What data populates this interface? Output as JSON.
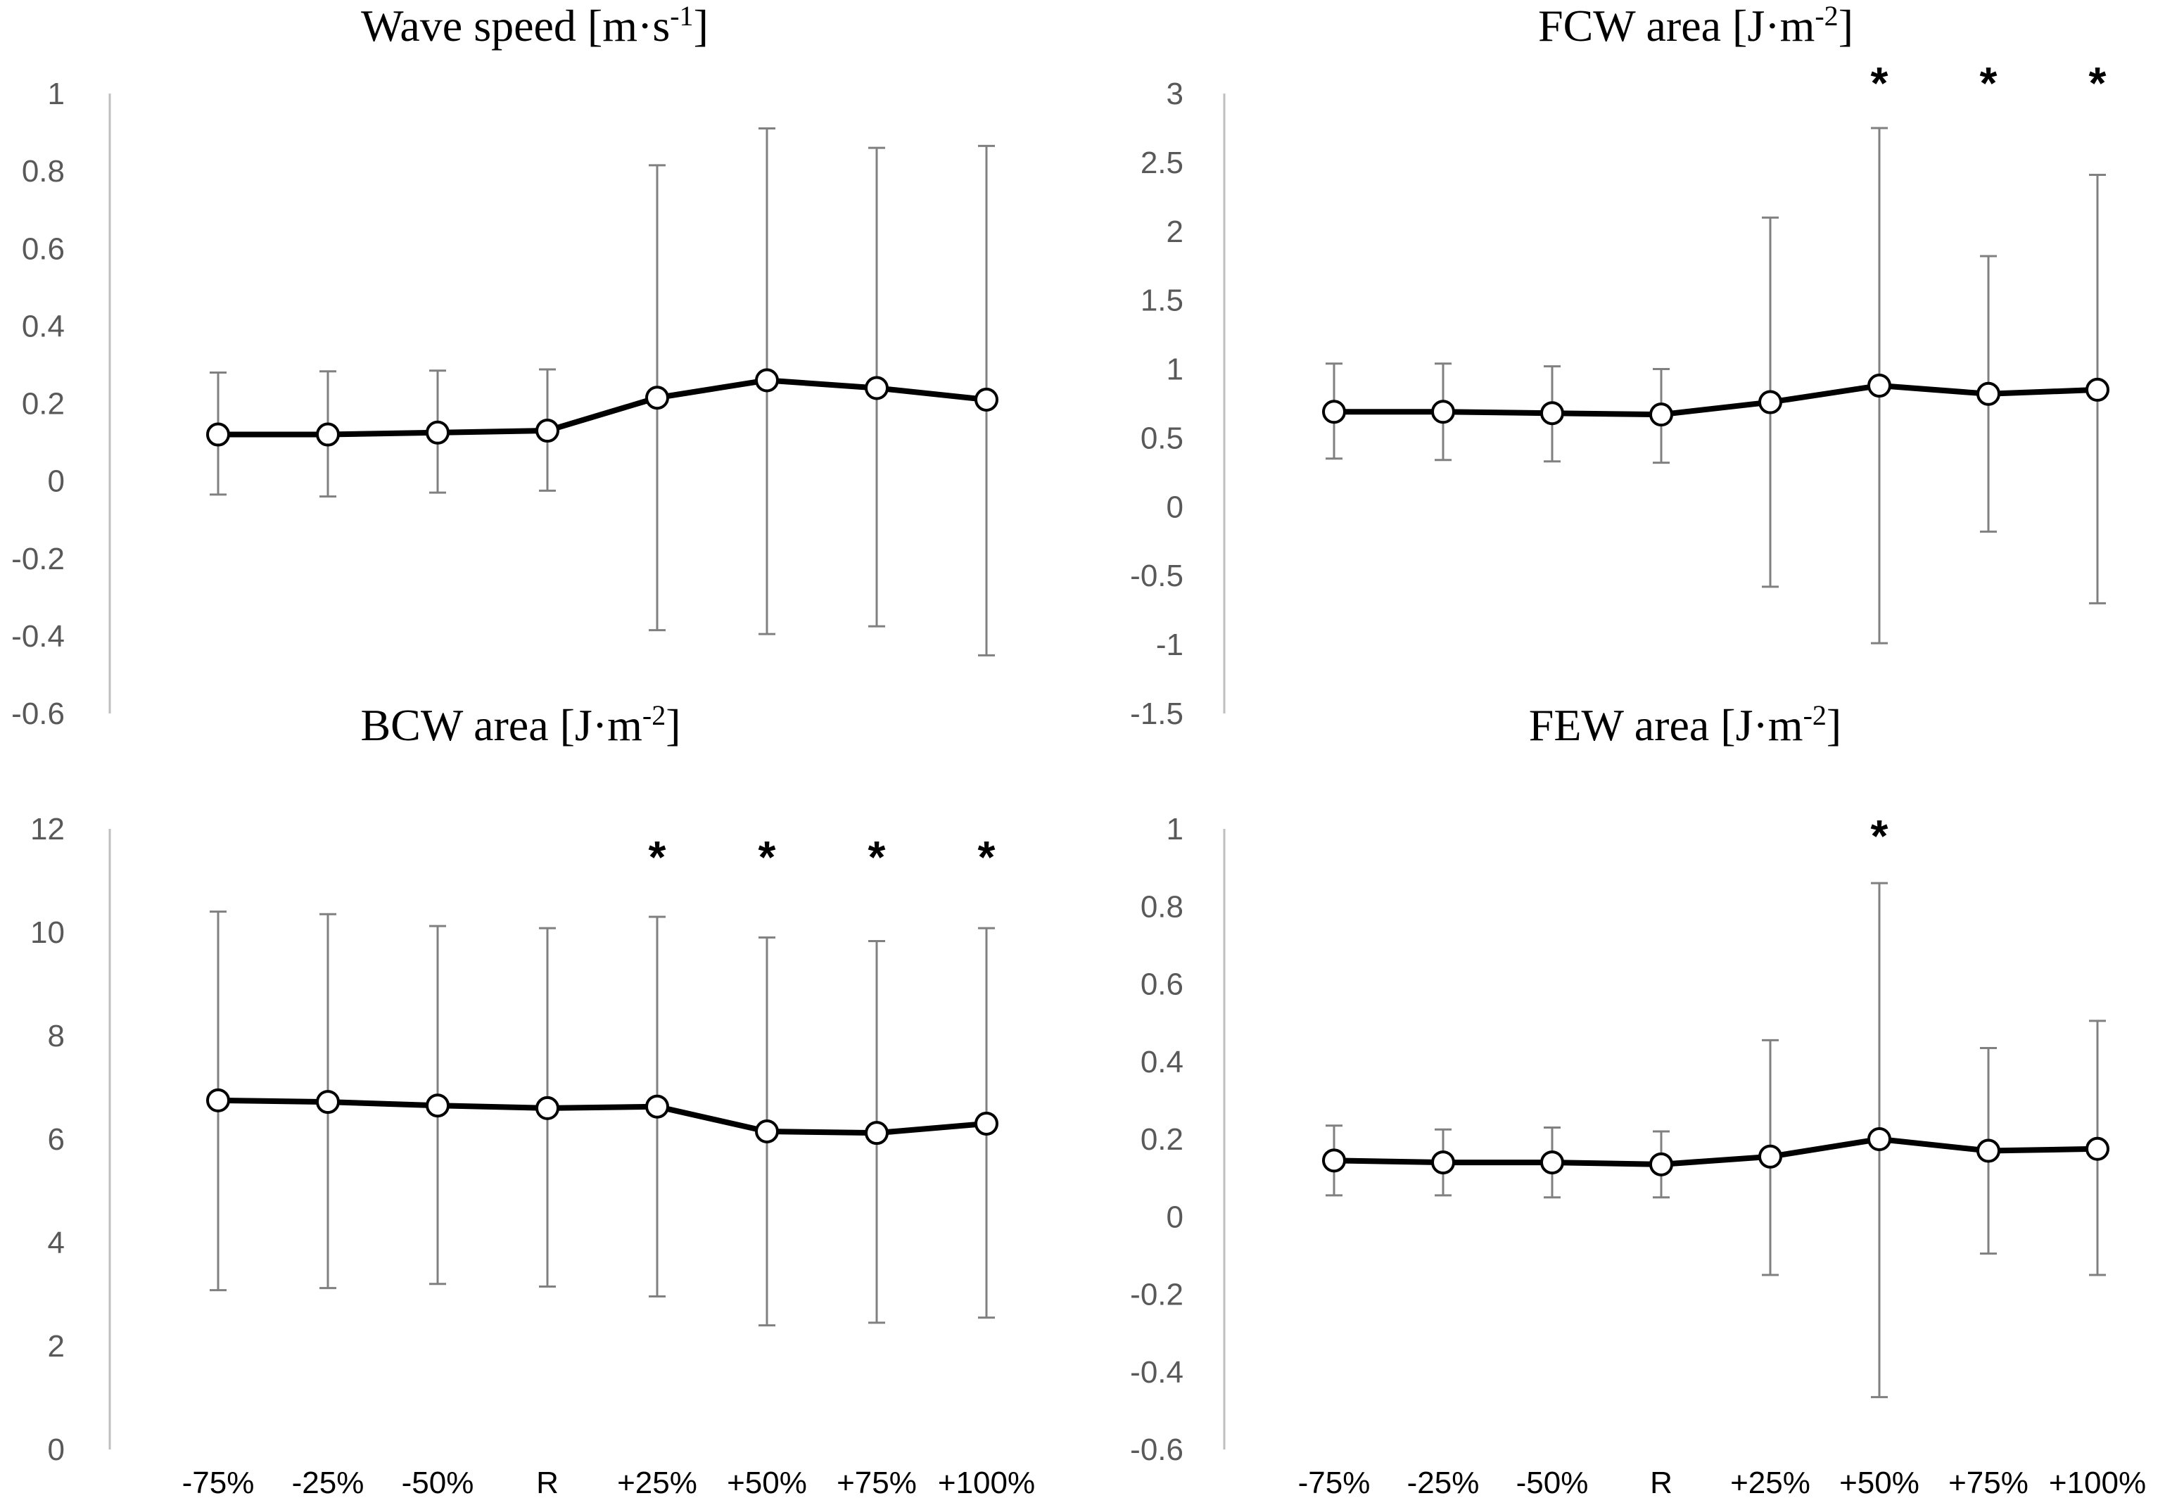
{
  "chart_data": [
    {
      "type": "line",
      "title_main": "Wave speed [m·s",
      "title_sup": "-1",
      "title_end": "]",
      "categories": [
        "-75%",
        "-25%",
        "-50%",
        "R",
        "+25%",
        "+50%",
        "+75%",
        "+100%"
      ],
      "ylim": [
        -0.6,
        1
      ],
      "yticks": [
        "1",
        "0.8",
        "0.6",
        "0.4",
        "0.2",
        "0",
        "-0.2",
        "-0.4",
        "-0.6"
      ],
      "values": [
        0.12,
        0.12,
        0.125,
        0.13,
        0.215,
        0.26,
        0.24,
        0.21
      ],
      "err_upper": [
        0.28,
        0.283,
        0.285,
        0.288,
        0.815,
        0.91,
        0.86,
        0.865
      ],
      "err_lower": [
        -0.035,
        -0.04,
        -0.03,
        -0.025,
        -0.385,
        -0.395,
        -0.375,
        -0.45
      ],
      "significant": [
        false,
        false,
        false,
        false,
        false,
        false,
        false,
        false
      ],
      "star_symbol": "*",
      "show_xticks": false
    },
    {
      "type": "line",
      "title_main": "FCW area [J·m",
      "title_sup": "-2",
      "title_end": "]",
      "categories": [
        "-75%",
        "-25%",
        "-50%",
        "R",
        "+25%",
        "+50%",
        "+75%",
        "+100%"
      ],
      "ylim": [
        -1.5,
        3
      ],
      "yticks": [
        "3",
        "2.5",
        "2",
        "1.5",
        "1",
        "0.5",
        "0",
        "-0.5",
        "-1",
        "-1.5"
      ],
      "values": [
        0.69,
        0.69,
        0.68,
        0.67,
        0.76,
        0.88,
        0.82,
        0.85
      ],
      "err_upper": [
        1.04,
        1.04,
        1.02,
        1.0,
        2.1,
        2.75,
        1.82,
        2.41
      ],
      "err_lower": [
        0.35,
        0.34,
        0.33,
        0.32,
        -0.58,
        -0.99,
        -0.18,
        -0.7
      ],
      "significant": [
        false,
        false,
        false,
        false,
        false,
        true,
        true,
        true
      ],
      "star_symbol": "*",
      "show_xticks": false
    },
    {
      "type": "line",
      "title_main": "BCW area [J·m",
      "title_sup": "-2",
      "title_end": "]",
      "categories": [
        "-75%",
        "-25%",
        "-50%",
        "R",
        "+25%",
        "+50%",
        "+75%",
        "+100%"
      ],
      "ylim": [
        0,
        12
      ],
      "yticks": [
        "12",
        "10",
        "8",
        "6",
        "4",
        "2",
        "0"
      ],
      "values": [
        6.75,
        6.72,
        6.65,
        6.6,
        6.63,
        6.15,
        6.12,
        6.3
      ],
      "err_upper": [
        10.4,
        10.35,
        10.12,
        10.08,
        10.3,
        9.9,
        9.83,
        10.08
      ],
      "err_lower": [
        3.08,
        3.12,
        3.2,
        3.15,
        2.96,
        2.4,
        2.45,
        2.55
      ],
      "significant": [
        false,
        false,
        false,
        false,
        true,
        true,
        true,
        true
      ],
      "star_symbol": "*",
      "show_xticks": true
    },
    {
      "type": "line",
      "title_main": "FEW area [J·m",
      "title_sup": "-2",
      "title_end": "]",
      "categories": [
        "-75%",
        "-25%",
        "-50%",
        "R",
        "+25%",
        "+50%",
        "+75%",
        "+100%"
      ],
      "ylim": [
        -0.6,
        1
      ],
      "yticks": [
        "1",
        "0.8",
        "0.6",
        "0.4",
        "0.2",
        "0",
        "-0.2",
        "-0.4",
        "-0.6"
      ],
      "values": [
        0.145,
        0.14,
        0.14,
        0.135,
        0.155,
        0.2,
        0.17,
        0.175
      ],
      "err_upper": [
        0.235,
        0.225,
        0.23,
        0.22,
        0.455,
        0.86,
        0.435,
        0.505
      ],
      "err_lower": [
        0.055,
        0.055,
        0.05,
        0.05,
        -0.15,
        -0.465,
        -0.095,
        -0.15
      ],
      "significant": [
        false,
        false,
        false,
        false,
        false,
        true,
        false,
        false
      ],
      "star_symbol": "*",
      "show_xticks": true
    }
  ],
  "colors": {
    "line": "#000000",
    "marker_fill": "#ffffff",
    "error_bar": "#808080",
    "axis": "#bfbfbf",
    "tick_label": "#595959"
  }
}
